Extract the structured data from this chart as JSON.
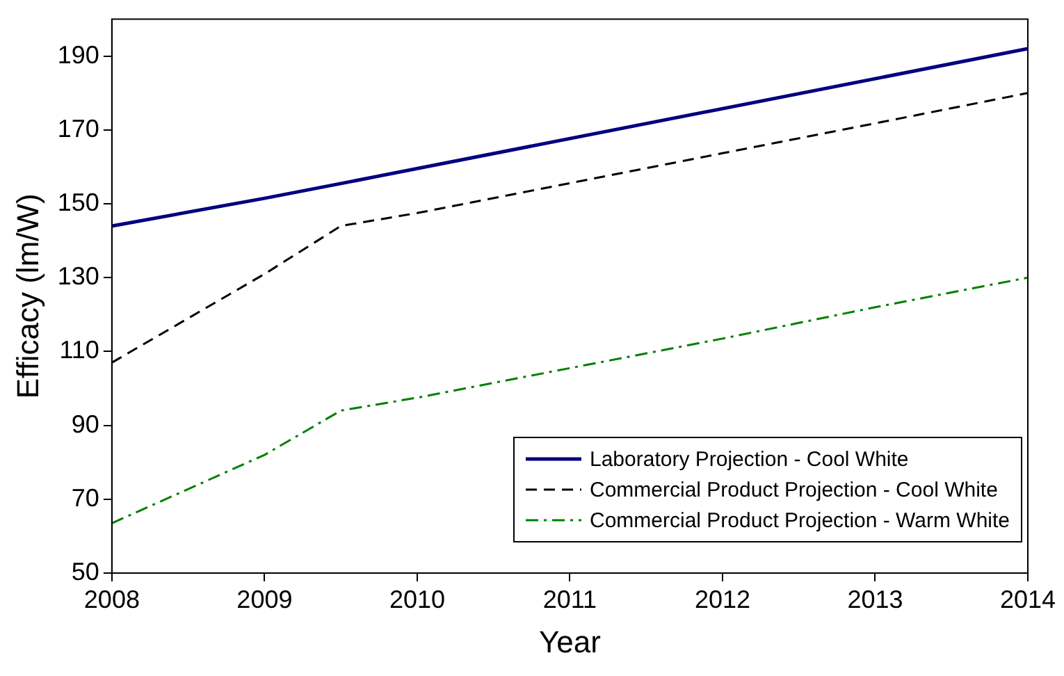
{
  "chart_data": {
    "type": "line",
    "xlabel": "Year",
    "ylabel": "Efficacy (lm/W)",
    "xlim": [
      2008,
      2014
    ],
    "xticks": [
      2008,
      2009,
      2010,
      2011,
      2012,
      2013,
      2014
    ],
    "ylim": [
      50,
      200
    ],
    "yticks": [
      50,
      70,
      90,
      110,
      130,
      150,
      170,
      190
    ],
    "grid": false,
    "legend": "bottom right",
    "marker": "none",
    "series": [
      {
        "name": "Laboratory Projection - Cool White",
        "color": "#000080",
        "line_style": "solid",
        "x": [
          2008,
          2009,
          2009.5,
          2014
        ],
        "values": [
          144,
          151.5,
          155.5,
          192
        ]
      },
      {
        "name": "Commercial Product Projection - Cool White",
        "color": "#000000",
        "line_style": "dashed",
        "x": [
          2008,
          2009,
          2009.5,
          2010,
          2011,
          2012,
          2013,
          2014
        ],
        "values": [
          107,
          131,
          144,
          147.5,
          155.6,
          163.7,
          171.8,
          180
        ]
      },
      {
        "name": "Commercial Product Projection - Warm White",
        "color": "#008000",
        "line_style": "dashdot",
        "x": [
          2008,
          2009,
          2009.5,
          2010,
          2011,
          2012,
          2013,
          2014
        ],
        "values": [
          63.5,
          82,
          94,
          97.5,
          105.5,
          113.5,
          122,
          130
        ]
      }
    ]
  }
}
